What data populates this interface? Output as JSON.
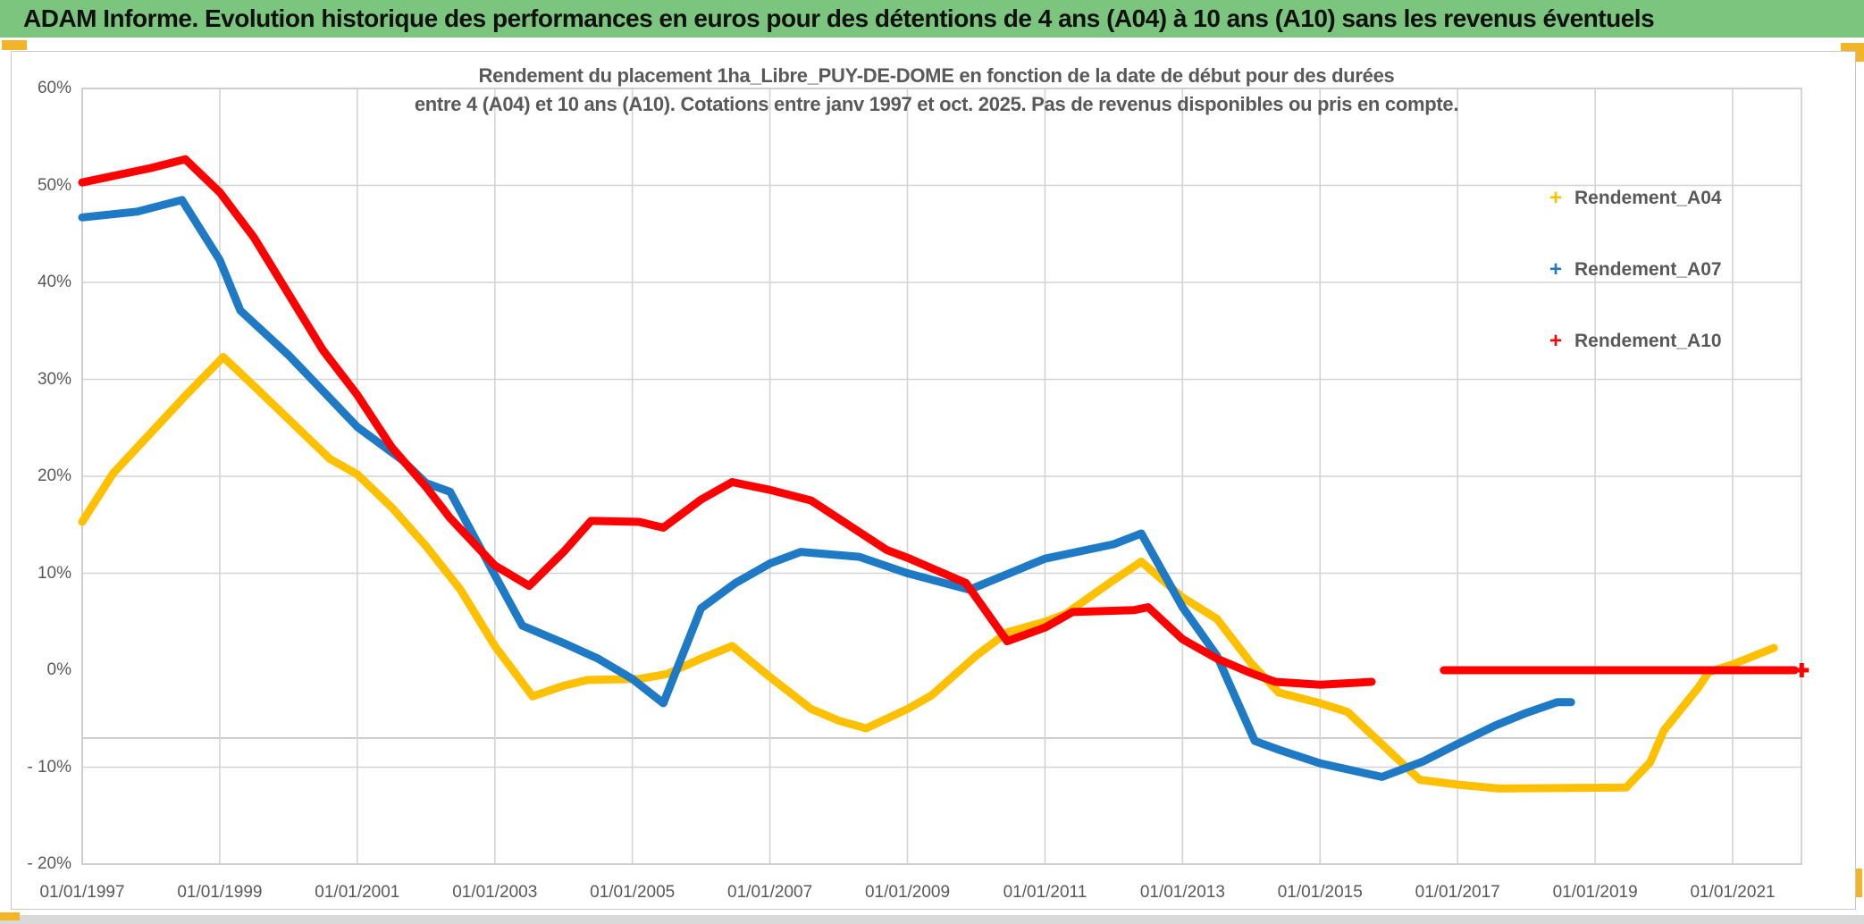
{
  "window": {
    "title": "ADAM Informe. Evolution historique des performances en euros pour des détentions de 4 ans (A04) à 10 ans (A10) sans les revenus éventuels",
    "titlebar_color": "#7CC57E",
    "accent_color": "#F2B428",
    "bottombar_color": "#d9d9d9"
  },
  "chart_data": {
    "type": "line",
    "title_line1": "Rendement du placement 1ha_Libre_PUY-DE-DOME en fonction de la date de début pour des durées",
    "title_line2": "entre 4 (A04) et 10 ans (A10). Cotations entre janv 1997 et oct. 2025. Pas de revenus disponibles ou pris en compte.",
    "grid_on": true,
    "legend_position": "right",
    "xlim_years": [
      1997.0,
      2022.0
    ],
    "ylim_percent": [
      -20,
      60
    ],
    "y_ticks": [
      {
        "label": "60%",
        "value": 60,
        "gridline": true
      },
      {
        "label": "50%",
        "value": 50,
        "gridline": true
      },
      {
        "label": "40%",
        "value": 40,
        "gridline": true
      },
      {
        "label": "30%",
        "value": 30,
        "gridline": true
      },
      {
        "label": "20%",
        "value": 20,
        "gridline": true
      },
      {
        "label": "10%",
        "value": 10,
        "gridline": true
      },
      {
        "label": "0%",
        "value": 0,
        "gridline": false
      },
      {
        "label": "- 10%",
        "value": -10,
        "gridline": true
      },
      {
        "label": "- 20%",
        "value": -20,
        "gridline": true
      }
    ],
    "extra_gridline_value": -7,
    "x_ticks": [
      {
        "label": "01/01/1997",
        "year": 1997
      },
      {
        "label": "01/01/1999",
        "year": 1999
      },
      {
        "label": "01/01/2001",
        "year": 2001
      },
      {
        "label": "01/01/2003",
        "year": 2003
      },
      {
        "label": "01/01/2005",
        "year": 2005
      },
      {
        "label": "01/01/2007",
        "year": 2007
      },
      {
        "label": "01/01/2009",
        "year": 2009
      },
      {
        "label": "01/01/2011",
        "year": 2011
      },
      {
        "label": "01/01/2013",
        "year": 2013
      },
      {
        "label": "01/01/2015",
        "year": 2015
      },
      {
        "label": "01/01/2017",
        "year": 2017
      },
      {
        "label": "01/01/2019",
        "year": 2019
      },
      {
        "label": "01/01/2021",
        "year": 2021
      }
    ],
    "series": [
      {
        "name": "Rendement_A04",
        "color": "#FFC000",
        "end_marker": false,
        "segments": [
          [
            [
              1997.0,
              15.3
            ],
            [
              1997.45,
              20.3
            ],
            [
              1998.0,
              24.5
            ],
            [
              1998.5,
              28.3
            ],
            [
              1999.05,
              32.3
            ],
            [
              1999.5,
              29.3
            ],
            [
              2000.6,
              21.8
            ],
            [
              2001.0,
              20.2
            ],
            [
              2001.5,
              16.8
            ],
            [
              2002.0,
              12.8
            ],
            [
              2002.5,
              8.3
            ],
            [
              2003.0,
              2.5
            ],
            [
              2003.55,
              -2.7
            ],
            [
              2004.0,
              -1.6
            ],
            [
              2004.35,
              -1.0
            ],
            [
              2005.1,
              -0.9
            ],
            [
              2005.5,
              -0.4
            ],
            [
              2006.0,
              1.2
            ],
            [
              2006.45,
              2.5
            ],
            [
              2007.0,
              -0.7
            ],
            [
              2007.6,
              -4.0
            ],
            [
              2008.0,
              -5.2
            ],
            [
              2008.4,
              -6.0
            ],
            [
              2009.0,
              -4.0
            ],
            [
              2009.35,
              -2.6
            ],
            [
              2010.0,
              1.5
            ],
            [
              2010.45,
              3.9
            ],
            [
              2011.0,
              5.0
            ],
            [
              2011.3,
              5.8
            ],
            [
              2012.0,
              9.3
            ],
            [
              2012.4,
              11.2
            ],
            [
              2013.0,
              7.5
            ],
            [
              2013.5,
              5.3
            ],
            [
              2014.0,
              0.7
            ],
            [
              2014.4,
              -2.3
            ],
            [
              2015.0,
              -3.4
            ],
            [
              2015.4,
              -4.3
            ],
            [
              2016.0,
              -8.3
            ],
            [
              2016.45,
              -11.3
            ],
            [
              2017.0,
              -11.8
            ],
            [
              2017.6,
              -12.2
            ],
            [
              2019.45,
              -12.1
            ],
            [
              2019.8,
              -9.5
            ],
            [
              2020.0,
              -6.2
            ],
            [
              2020.5,
              -1.8
            ],
            [
              2020.65,
              -0.2
            ],
            [
              2021.0,
              0.6
            ],
            [
              2021.6,
              2.3
            ]
          ]
        ]
      },
      {
        "name": "Rendement_A07",
        "color": "#1F7AC5",
        "end_marker": false,
        "segments": [
          [
            [
              1997.0,
              46.7
            ],
            [
              1997.8,
              47.3
            ],
            [
              1998.45,
              48.5
            ],
            [
              1999.0,
              42.3
            ],
            [
              1999.3,
              37.1
            ],
            [
              2000.0,
              32.5
            ],
            [
              2000.5,
              28.8
            ],
            [
              2001.0,
              25.1
            ],
            [
              2001.65,
              21.7
            ],
            [
              2002.0,
              19.3
            ],
            [
              2002.35,
              18.4
            ],
            [
              2003.0,
              9.8
            ],
            [
              2003.4,
              4.6
            ],
            [
              2004.0,
              2.8
            ],
            [
              2004.5,
              1.2
            ],
            [
              2005.0,
              -0.9
            ],
            [
              2005.45,
              -3.4
            ],
            [
              2006.0,
              6.4
            ],
            [
              2006.5,
              9.0
            ],
            [
              2007.0,
              11.0
            ],
            [
              2007.45,
              12.2
            ],
            [
              2008.3,
              11.7
            ],
            [
              2009.0,
              10.0
            ],
            [
              2009.9,
              8.3
            ],
            [
              2011.0,
              11.5
            ],
            [
              2012.0,
              13.0
            ],
            [
              2012.4,
              14.1
            ],
            [
              2013.0,
              6.5
            ],
            [
              2013.5,
              1.5
            ],
            [
              2014.05,
              -7.3
            ],
            [
              2014.4,
              -8.2
            ],
            [
              2015.0,
              -9.6
            ],
            [
              2015.9,
              -11.0
            ],
            [
              2016.5,
              -9.4
            ],
            [
              2017.0,
              -7.6
            ],
            [
              2017.55,
              -5.7
            ],
            [
              2018.0,
              -4.4
            ],
            [
              2018.45,
              -3.3
            ],
            [
              2018.65,
              -3.3
            ]
          ]
        ]
      },
      {
        "name": "Rendement_A10",
        "color": "#FF0000",
        "end_marker": true,
        "segments": [
          [
            [
              1997.0,
              50.3
            ],
            [
              1998.0,
              51.8
            ],
            [
              1998.5,
              52.7
            ],
            [
              1999.0,
              49.3
            ],
            [
              1999.5,
              44.6
            ],
            [
              2000.0,
              38.8
            ],
            [
              2000.5,
              33.0
            ],
            [
              2001.0,
              28.4
            ],
            [
              2001.5,
              23.0
            ],
            [
              2002.0,
              18.9
            ],
            [
              2002.35,
              15.7
            ],
            [
              2003.0,
              10.8
            ],
            [
              2003.5,
              8.7
            ],
            [
              2004.0,
              12.2
            ],
            [
              2004.4,
              15.4
            ],
            [
              2005.1,
              15.3
            ],
            [
              2005.45,
              14.7
            ],
            [
              2006.0,
              17.6
            ],
            [
              2006.45,
              19.4
            ],
            [
              2007.0,
              18.6
            ],
            [
              2007.6,
              17.5
            ],
            [
              2008.7,
              12.4
            ],
            [
              2009.0,
              11.6
            ],
            [
              2009.85,
              9.0
            ],
            [
              2010.45,
              3.0
            ],
            [
              2011.0,
              4.4
            ],
            [
              2011.4,
              6.0
            ],
            [
              2012.3,
              6.2
            ],
            [
              2012.5,
              6.5
            ],
            [
              2013.0,
              3.2
            ],
            [
              2013.5,
              1.2
            ],
            [
              2014.0,
              -0.3
            ],
            [
              2014.35,
              -1.2
            ],
            [
              2015.0,
              -1.5
            ],
            [
              2015.75,
              -1.2
            ]
          ],
          [
            [
              2016.8,
              0.0
            ],
            [
              2021.9,
              0.0
            ]
          ]
        ]
      }
    ],
    "legend": [
      {
        "label": "Rendement_A04",
        "marker": "+",
        "color": "#FFC000"
      },
      {
        "label": "Rendement_A07",
        "marker": "+",
        "color": "#1F7AC5"
      },
      {
        "label": "Rendement_A10",
        "marker": "+",
        "color": "#FF0000"
      }
    ]
  }
}
